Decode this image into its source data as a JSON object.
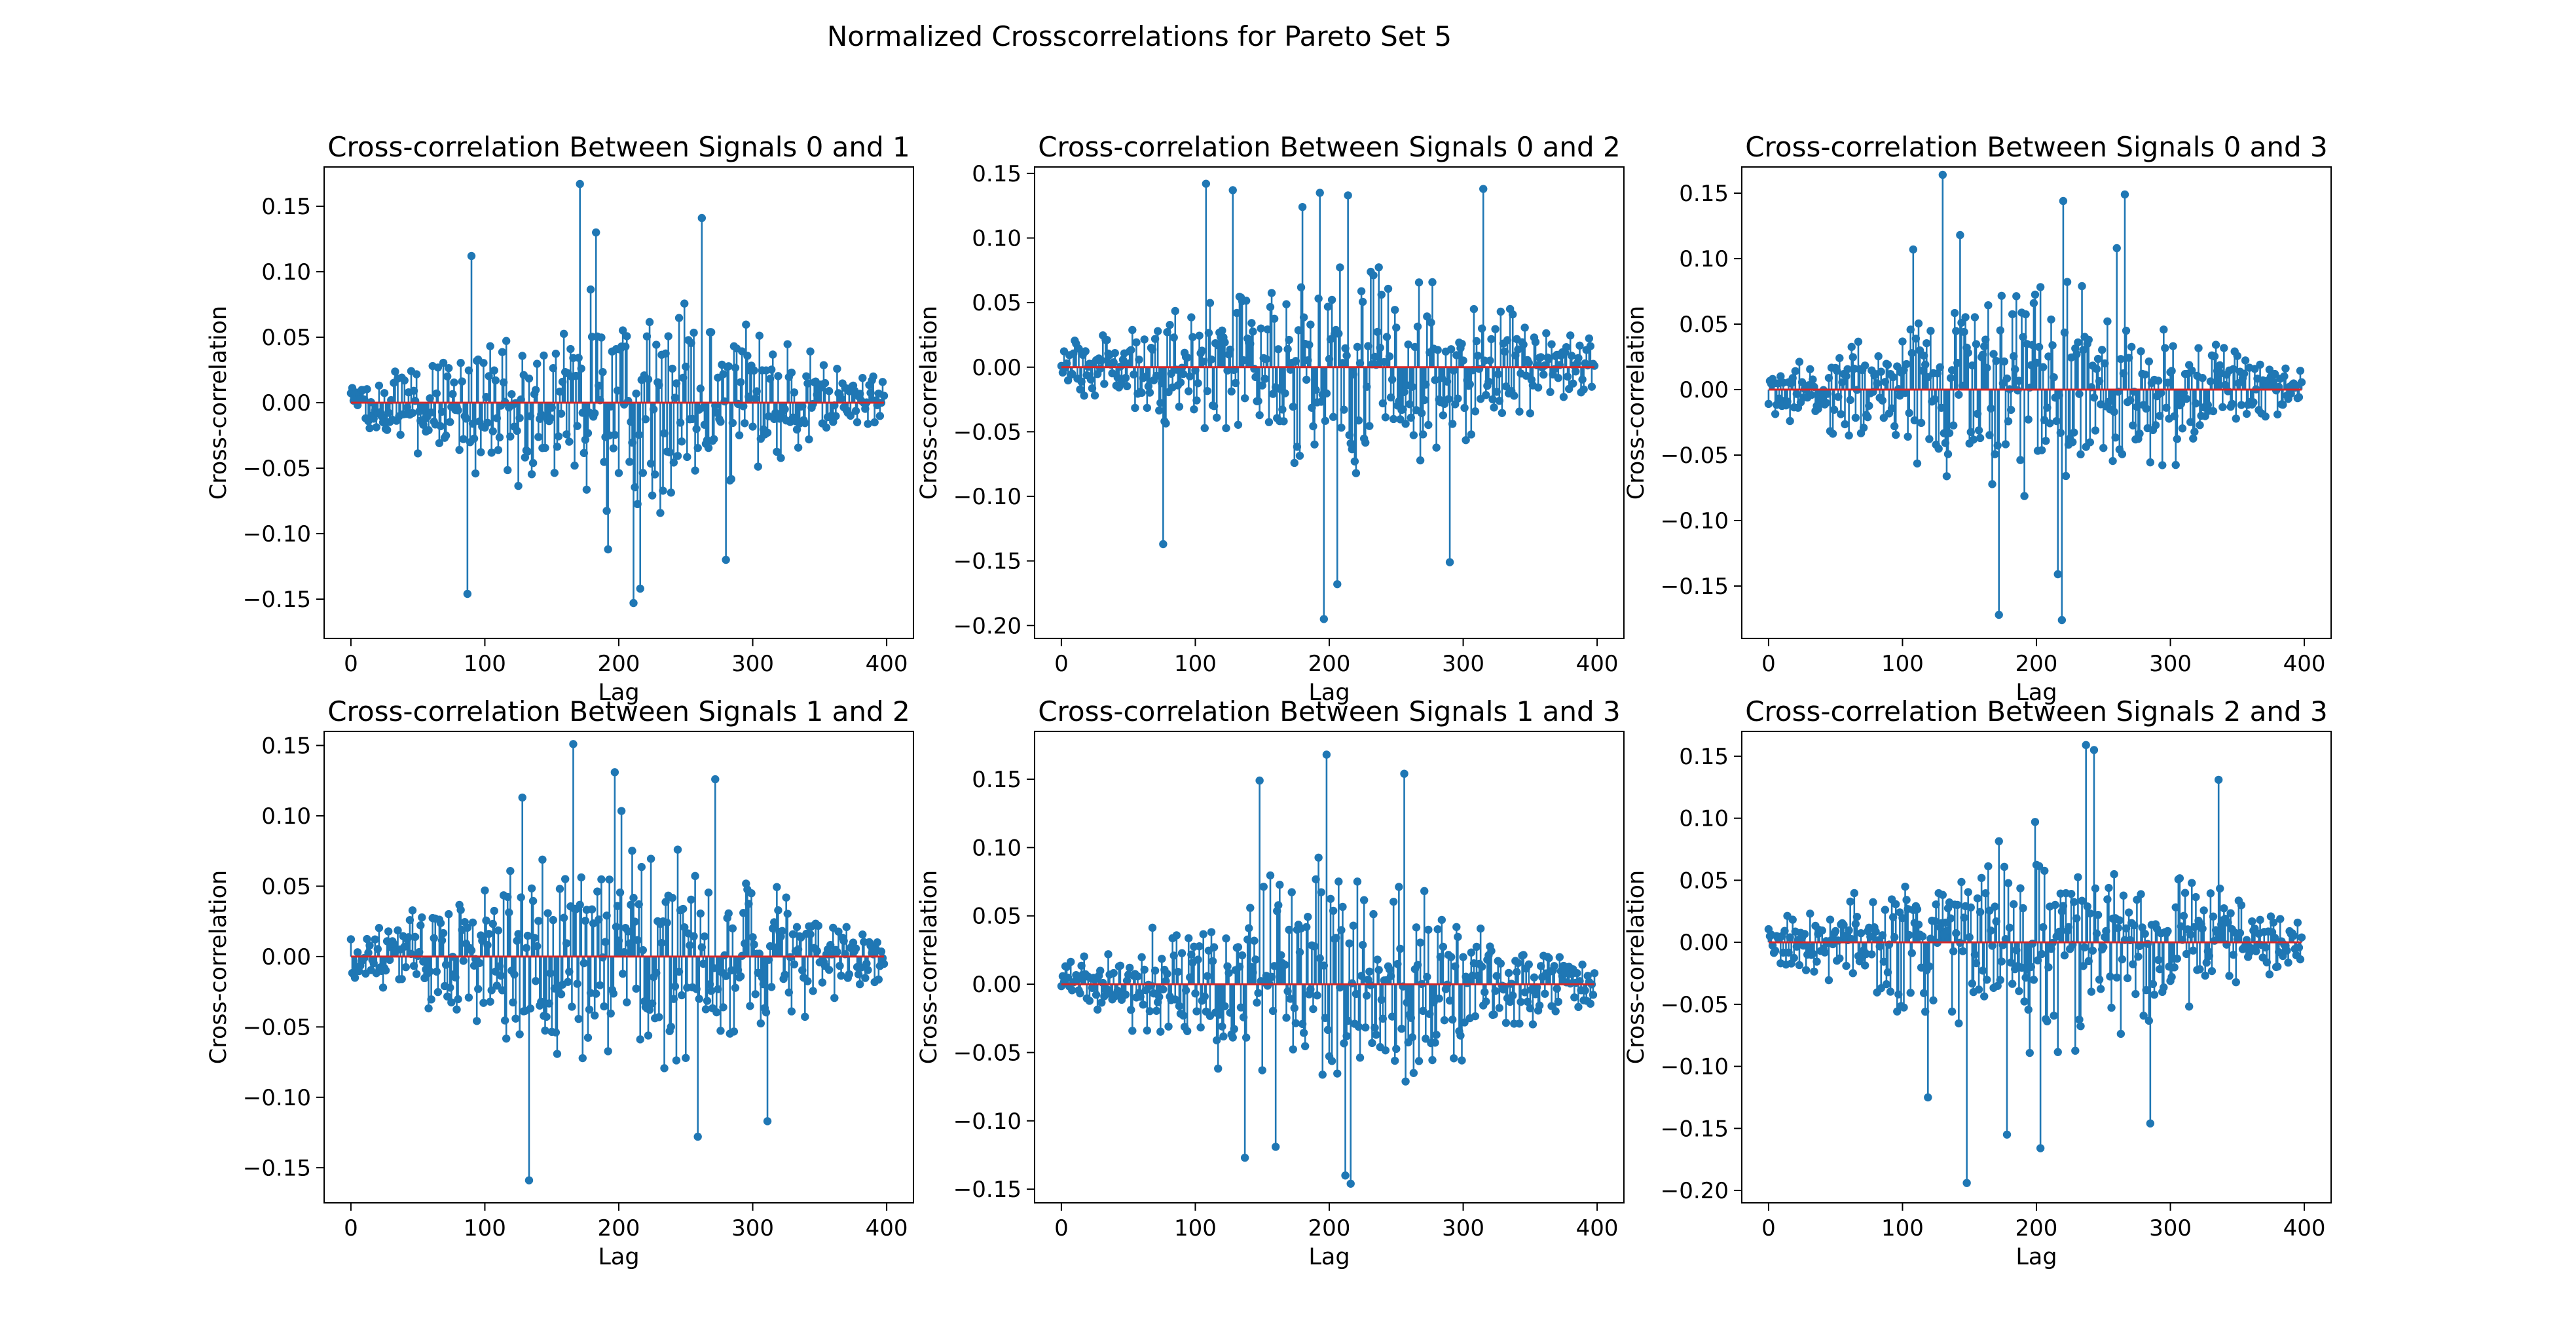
{
  "figure": {
    "suptitle": "Normalized Crosscorrelations for Pareto Set 5"
  },
  "colors": {
    "stem": "#1f77b4",
    "baseline": "#d62728",
    "axes": "#000000"
  },
  "chart_data": [
    {
      "type": "stem",
      "title": "Cross-correlation Between Signals 0 and 1",
      "xlabel": "Lag",
      "ylabel": "Cross-correlation",
      "xlim": [
        -20,
        420
      ],
      "ylim": [
        -0.18,
        0.18
      ],
      "xticks": [
        0,
        100,
        200,
        300,
        400
      ],
      "xtick_labels": [
        "0",
        "100",
        "200",
        "300",
        "400"
      ],
      "yticks": [
        -0.15,
        -0.1,
        -0.05,
        0.0,
        0.05,
        0.1,
        0.15
      ],
      "ytick_labels": [
        "−0.15",
        "−0.10",
        "−0.05",
        "0.00",
        "0.05",
        "0.10",
        "0.15"
      ],
      "n_points": 399,
      "seed": 11,
      "envelope_peak": 0.092,
      "envelope_floor": 0.016,
      "peaks": [
        {
          "x": 87,
          "y": -0.146
        },
        {
          "x": 90,
          "y": 0.112
        },
        {
          "x": 171,
          "y": 0.167
        },
        {
          "x": 183,
          "y": 0.13
        },
        {
          "x": 192,
          "y": -0.112
        },
        {
          "x": 211,
          "y": -0.153
        },
        {
          "x": 216,
          "y": -0.142
        },
        {
          "x": 262,
          "y": 0.141
        },
        {
          "x": 280,
          "y": -0.12
        }
      ],
      "baseline": 0
    },
    {
      "type": "stem",
      "title": "Cross-correlation Between Signals 0 and 2",
      "xlabel": "Lag",
      "ylabel": "Cross-correlation",
      "xlim": [
        -20,
        420
      ],
      "ylim": [
        -0.21,
        0.155
      ],
      "xticks": [
        0,
        100,
        200,
        300,
        400
      ],
      "xtick_labels": [
        "0",
        "100",
        "200",
        "300",
        "400"
      ],
      "yticks": [
        -0.2,
        -0.15,
        -0.1,
        -0.05,
        0.0,
        0.05,
        0.1,
        0.15
      ],
      "ytick_labels": [
        "−0.20",
        "−0.15",
        "−0.10",
        "−0.05",
        "0.00",
        "0.05",
        "0.10",
        "0.15"
      ],
      "n_points": 399,
      "seed": 23,
      "envelope_peak": 0.088,
      "envelope_floor": 0.018,
      "peaks": [
        {
          "x": 108,
          "y": 0.142
        },
        {
          "x": 128,
          "y": 0.137
        },
        {
          "x": 76,
          "y": -0.137
        },
        {
          "x": 180,
          "y": 0.124
        },
        {
          "x": 193,
          "y": 0.135
        },
        {
          "x": 196,
          "y": -0.195
        },
        {
          "x": 206,
          "y": -0.168
        },
        {
          "x": 214,
          "y": 0.133
        },
        {
          "x": 290,
          "y": -0.151
        },
        {
          "x": 315,
          "y": 0.138
        }
      ],
      "baseline": 0
    },
    {
      "type": "stem",
      "title": "Cross-correlation Between Signals 0 and 3",
      "xlabel": "Lag",
      "ylabel": "Cross-correlation",
      "xlim": [
        -20,
        420
      ],
      "ylim": [
        -0.19,
        0.17
      ],
      "xticks": [
        0,
        100,
        200,
        300,
        400
      ],
      "xtick_labels": [
        "0",
        "100",
        "200",
        "300",
        "400"
      ],
      "yticks": [
        -0.15,
        -0.1,
        -0.05,
        0.0,
        0.05,
        0.1,
        0.15
      ],
      "ytick_labels": [
        "−0.15",
        "−0.10",
        "−0.05",
        "0.00",
        "0.05",
        "0.10",
        "0.15"
      ],
      "n_points": 399,
      "seed": 37,
      "envelope_peak": 0.086,
      "envelope_floor": 0.016,
      "peaks": [
        {
          "x": 130,
          "y": 0.164
        },
        {
          "x": 143,
          "y": 0.118
        },
        {
          "x": 172,
          "y": -0.172
        },
        {
          "x": 219,
          "y": -0.176
        },
        {
          "x": 216,
          "y": -0.141
        },
        {
          "x": 220,
          "y": 0.144
        },
        {
          "x": 266,
          "y": 0.149
        },
        {
          "x": 260,
          "y": 0.108
        },
        {
          "x": 108,
          "y": 0.107
        }
      ],
      "baseline": 0
    },
    {
      "type": "stem",
      "title": "Cross-correlation Between Signals 1 and 2",
      "xlabel": "Lag",
      "ylabel": "Cross-correlation",
      "xlim": [
        -20,
        420
      ],
      "ylim": [
        -0.175,
        0.16
      ],
      "xticks": [
        0,
        100,
        200,
        300,
        400
      ],
      "xtick_labels": [
        "0",
        "100",
        "200",
        "300",
        "400"
      ],
      "yticks": [
        -0.15,
        -0.1,
        -0.05,
        0.0,
        0.05,
        0.1,
        0.15
      ],
      "ytick_labels": [
        "−0.15",
        "−0.10",
        "−0.05",
        "0.00",
        "0.05",
        "0.10",
        "0.15"
      ],
      "n_points": 399,
      "seed": 41,
      "envelope_peak": 0.09,
      "envelope_floor": 0.018,
      "peaks": [
        {
          "x": 133,
          "y": -0.159
        },
        {
          "x": 166,
          "y": 0.151
        },
        {
          "x": 197,
          "y": 0.131
        },
        {
          "x": 272,
          "y": 0.126
        },
        {
          "x": 259,
          "y": -0.128
        },
        {
          "x": 311,
          "y": -0.117
        },
        {
          "x": 128,
          "y": 0.113
        }
      ],
      "baseline": 0
    },
    {
      "type": "stem",
      "title": "Cross-correlation Between Signals 1 and 3",
      "xlabel": "Lag",
      "ylabel": "Cross-correlation",
      "xlim": [
        -20,
        420
      ],
      "ylim": [
        -0.16,
        0.185
      ],
      "xticks": [
        0,
        100,
        200,
        300,
        400
      ],
      "xtick_labels": [
        "0",
        "100",
        "200",
        "300",
        "400"
      ],
      "yticks": [
        -0.15,
        -0.1,
        -0.05,
        0.0,
        0.05,
        0.1,
        0.15
      ],
      "ytick_labels": [
        "−0.15",
        "−0.10",
        "−0.05",
        "0.00",
        "0.05",
        "0.10",
        "0.15"
      ],
      "n_points": 399,
      "seed": 53,
      "envelope_peak": 0.09,
      "envelope_floor": 0.014,
      "peaks": [
        {
          "x": 198,
          "y": 0.168
        },
        {
          "x": 256,
          "y": 0.154
        },
        {
          "x": 148,
          "y": 0.149
        },
        {
          "x": 216,
          "y": -0.146
        },
        {
          "x": 137,
          "y": -0.127
        },
        {
          "x": 212,
          "y": -0.14
        },
        {
          "x": 160,
          "y": -0.119
        }
      ],
      "baseline": 0
    },
    {
      "type": "stem",
      "title": "Cross-correlation Between Signals 2 and 3",
      "xlabel": "Lag",
      "ylabel": "Cross-correlation",
      "xlim": [
        -20,
        420
      ],
      "ylim": [
        -0.21,
        0.17
      ],
      "xticks": [
        0,
        100,
        200,
        300,
        400
      ],
      "xtick_labels": [
        "0",
        "100",
        "200",
        "300",
        "400"
      ],
      "yticks": [
        -0.2,
        -0.15,
        -0.1,
        -0.05,
        0.0,
        0.05,
        0.1,
        0.15
      ],
      "ytick_labels": [
        "−0.20",
        "−0.15",
        "−0.10",
        "−0.05",
        "0.00",
        "0.05",
        "0.10",
        "0.15"
      ],
      "n_points": 399,
      "seed": 67,
      "envelope_peak": 0.09,
      "envelope_floor": 0.015,
      "peaks": [
        {
          "x": 148,
          "y": -0.194
        },
        {
          "x": 203,
          "y": -0.166
        },
        {
          "x": 178,
          "y": -0.155
        },
        {
          "x": 237,
          "y": 0.159
        },
        {
          "x": 243,
          "y": 0.155
        },
        {
          "x": 285,
          "y": -0.146
        },
        {
          "x": 336,
          "y": 0.131
        },
        {
          "x": 119,
          "y": -0.125
        }
      ],
      "baseline": 0
    }
  ]
}
